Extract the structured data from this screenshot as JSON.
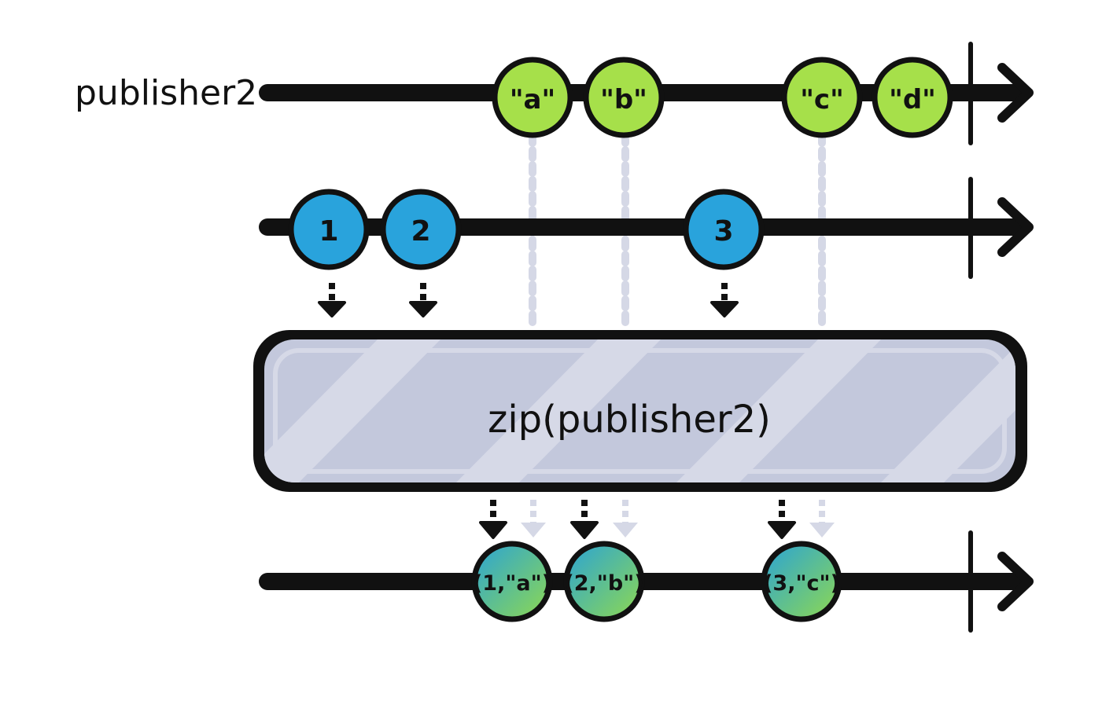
{
  "colors": {
    "line": "#111111",
    "green_marble": "#a6e04a",
    "blue_marble": "#29a3dc",
    "result_start": "#2aa3d6",
    "result_end": "#8fd94f",
    "operator_fill": "#c3c8dc",
    "operator_hatch": "#d6d9e7",
    "guide": "#d5d8e6"
  },
  "rows": {
    "top": {
      "label": "publisher2",
      "marbles": [
        "\"a\"",
        "\"b\"",
        "\"c\"",
        "\"d\""
      ]
    },
    "middle": {
      "label": "",
      "marbles": [
        "1",
        "2",
        "3"
      ]
    },
    "bottom": {
      "label": "",
      "marbles": [
        "(1,\"a\")",
        "(2,\"b\")",
        "(3,\"c\")"
      ]
    }
  },
  "operator": {
    "label": "zip(publisher2)"
  }
}
